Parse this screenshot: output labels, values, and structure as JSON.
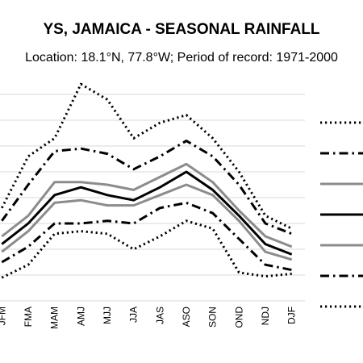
{
  "chart_data": {
    "type": "line",
    "title": "YS, JAMAICA - SEASONAL RAINFALL",
    "subtitle": "Location: 18.1°N, 77.8°W; Period of record: 1971-2000",
    "categories": [
      "JFM",
      "FMA",
      "MAM",
      "AMJ",
      "MJJ",
      "JJA",
      "JAS",
      "ASO",
      "SON",
      "OND",
      "NDJ",
      "DJF"
    ],
    "ylim": [
      0,
      8
    ],
    "grid": true,
    "legend_position": "right",
    "series": [
      {
        "values": [
          3.6,
          5.6,
          6.3,
          8.4,
          7.8,
          6.3,
          6.9,
          7.2,
          6.3,
          5.0,
          3.3,
          2.8
        ],
        "line": "dotted",
        "color": "#000000"
      },
      {
        "values": [
          3.1,
          4.5,
          5.8,
          5.9,
          5.7,
          5.1,
          5.6,
          6.2,
          5.6,
          4.5,
          3.0,
          2.6
        ],
        "line": "dashdot",
        "color": "#000000"
      },
      {
        "values": [
          2.5,
          3.3,
          4.6,
          4.6,
          4.5,
          4.3,
          4.8,
          5.3,
          4.6,
          3.5,
          2.5,
          2.1
        ],
        "line": "solid",
        "color": "#8c8c8c"
      },
      {
        "values": [
          2.2,
          3.0,
          4.1,
          4.4,
          4.1,
          3.9,
          4.4,
          5.0,
          4.3,
          3.3,
          2.2,
          1.8
        ],
        "line": "solid",
        "color": "#000000"
      },
      {
        "values": [
          1.9,
          2.7,
          3.8,
          3.9,
          3.7,
          3.7,
          4.1,
          4.5,
          4.1,
          3.1,
          1.9,
          1.6
        ],
        "line": "solid",
        "color": "#8c8c8c"
      },
      {
        "values": [
          1.5,
          2.1,
          3.0,
          3.0,
          3.1,
          3.0,
          3.6,
          3.8,
          3.4,
          2.4,
          1.4,
          1.2
        ],
        "line": "dashdot",
        "color": "#000000"
      },
      {
        "values": [
          0.9,
          1.4,
          2.6,
          2.7,
          2.6,
          2.0,
          2.5,
          3.1,
          2.8,
          1.1,
          0.95,
          1.05
        ],
        "line": "dotted",
        "color": "#000000"
      }
    ]
  }
}
